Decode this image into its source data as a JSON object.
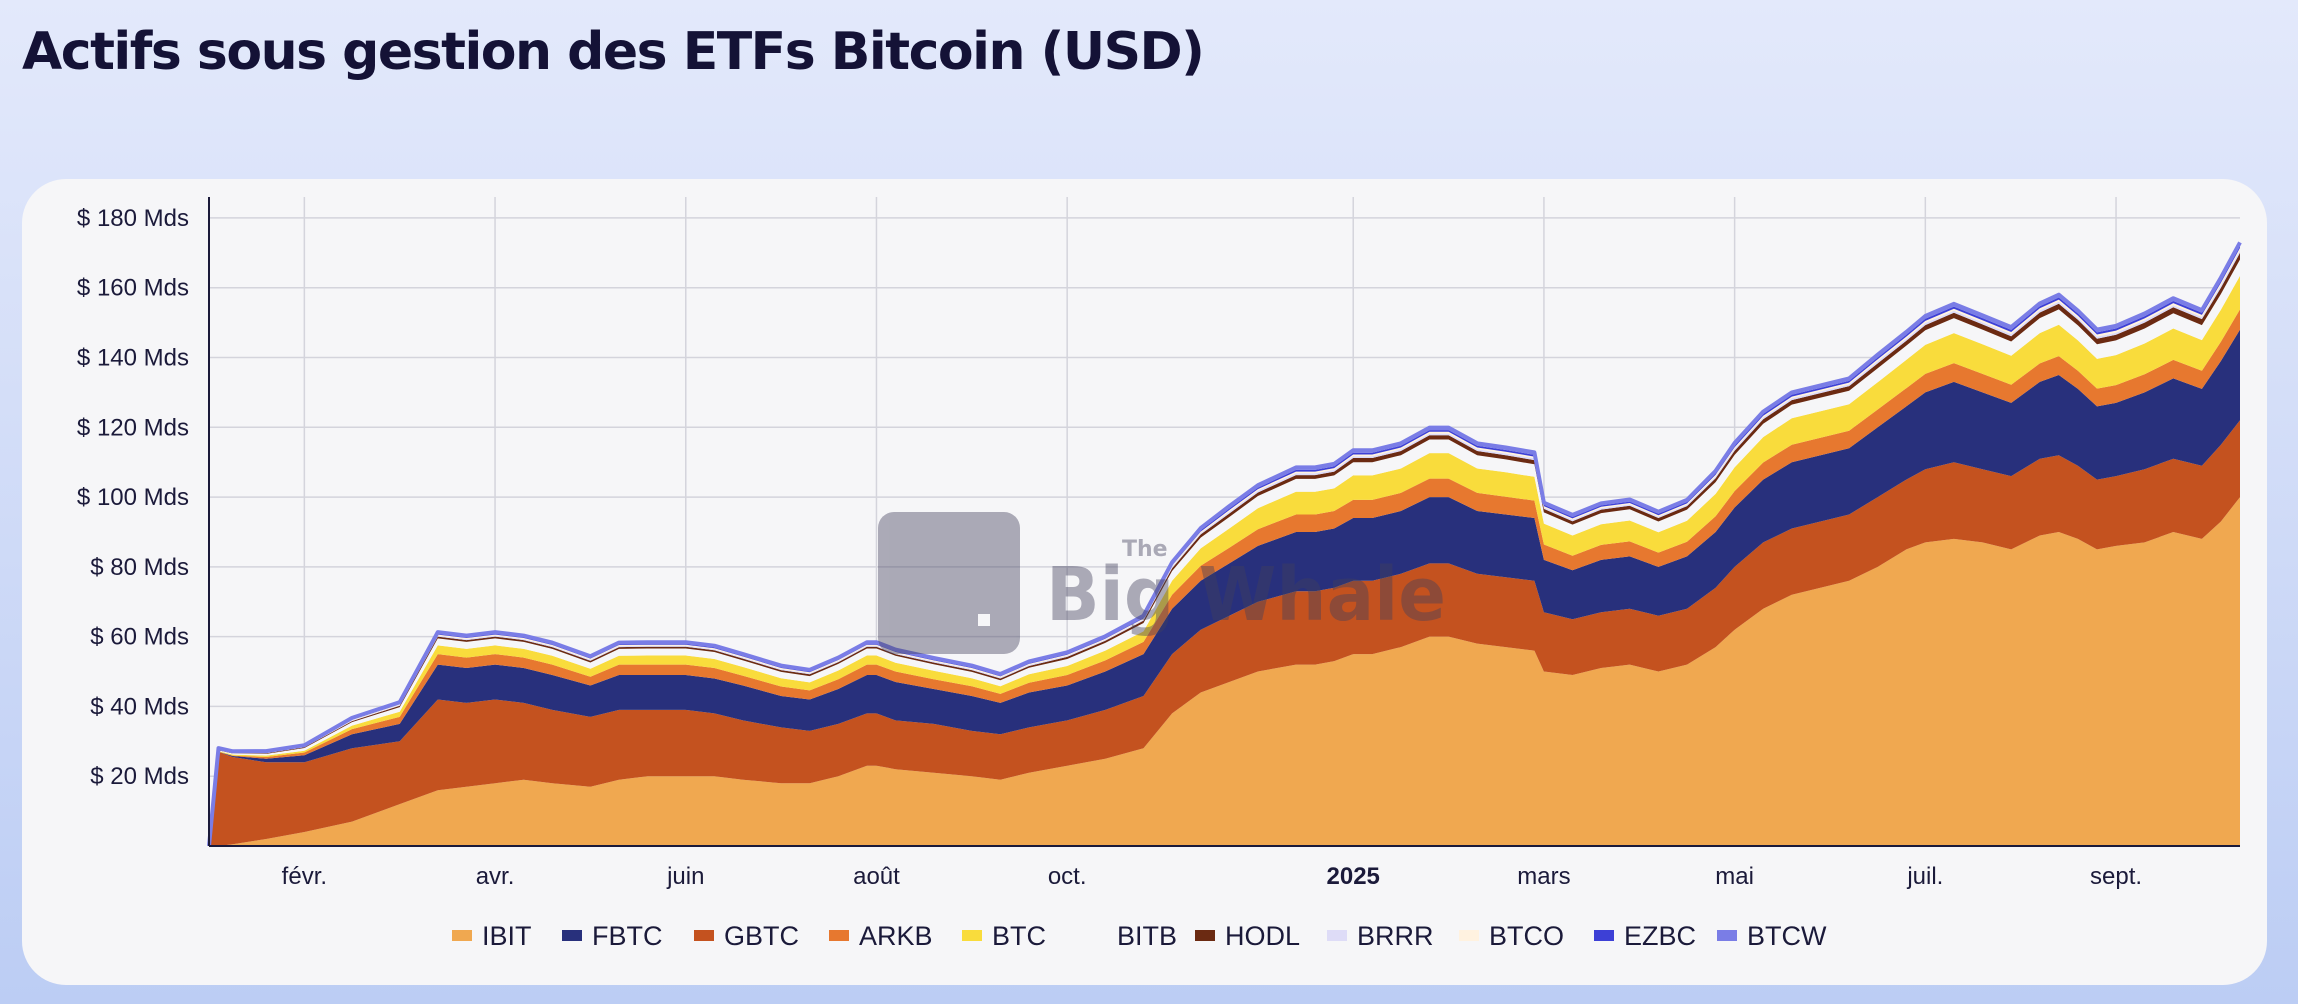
{
  "title": "Actifs sous gestion des ETFs Bitcoin (USD)",
  "watermark": {
    "small": "The",
    "large": "Big Whale"
  },
  "chart_data": {
    "type": "area",
    "stacked": true,
    "title": "Actifs sous gestion des ETFs Bitcoin (USD)",
    "xlabel": "",
    "ylabel": "",
    "unit": "Mds USD",
    "ylim": [
      0,
      186
    ],
    "yticks": [
      20,
      40,
      60,
      80,
      100,
      120,
      140,
      160,
      180
    ],
    "ytick_labels": [
      "$ 20 Mds",
      "$ 40 Mds",
      "$ 60 Mds",
      "$ 80 Mds",
      "$ 100 Mds",
      "$ 120 Mds",
      "$ 140 Mds",
      "$ 160 Mds",
      "$ 180 Mds"
    ],
    "xlim": [
      0,
      21.3
    ],
    "xticks": [
      {
        "x": 1,
        "label": "févr.",
        "bold": false
      },
      {
        "x": 3,
        "label": "avr.",
        "bold": false
      },
      {
        "x": 5,
        "label": "juin",
        "bold": false
      },
      {
        "x": 7,
        "label": "août",
        "bold": false
      },
      {
        "x": 9,
        "label": "oct.",
        "bold": false
      },
      {
        "x": 12,
        "label": "2025",
        "bold": true
      },
      {
        "x": 14,
        "label": "mars",
        "bold": false
      },
      {
        "x": 16,
        "label": "mai",
        "bold": false
      },
      {
        "x": 18,
        "label": "juil.",
        "bold": false
      },
      {
        "x": 20,
        "label": "sept.",
        "bold": false
      }
    ],
    "grid": true,
    "legend_position": "bottom",
    "x": [
      0,
      0.1,
      0.25,
      0.6,
      1.0,
      1.5,
      2.0,
      2.4,
      2.7,
      3.0,
      3.3,
      3.6,
      4.0,
      4.3,
      4.6,
      5.0,
      5.3,
      5.6,
      6.0,
      6.3,
      6.6,
      6.9,
      7.0,
      7.2,
      7.6,
      8.0,
      8.3,
      8.6,
      9.0,
      9.4,
      9.8,
      10.1,
      10.4,
      10.7,
      11.0,
      11.4,
      11.6,
      11.8,
      12.0,
      12.2,
      12.5,
      12.8,
      13.0,
      13.3,
      13.6,
      13.9,
      14.0,
      14.3,
      14.6,
      14.9,
      15.2,
      15.5,
      15.8,
      16.0,
      16.3,
      16.6,
      16.9,
      17.2,
      17.5,
      17.8,
      18.0,
      18.3,
      18.6,
      18.9,
      19.2,
      19.4,
      19.6,
      19.8,
      20.0,
      20.3,
      20.6,
      20.9,
      21.1,
      21.3
    ],
    "series": [
      {
        "name": "IBIT",
        "color": "#f0a850",
        "values": [
          0,
          0,
          0.5,
          2,
          4,
          7,
          12,
          16,
          17,
          18,
          19,
          18,
          17,
          19,
          20,
          20,
          20,
          19,
          18,
          18,
          20,
          23,
          23,
          22,
          21,
          20,
          19,
          21,
          23,
          25,
          28,
          38,
          44,
          47,
          50,
          52,
          52,
          53,
          55,
          55,
          57,
          60,
          60,
          58,
          57,
          56,
          50,
          49,
          51,
          52,
          50,
          52,
          57,
          62,
          68,
          72,
          74,
          76,
          80,
          85,
          87,
          88,
          87,
          85,
          89,
          90,
          88,
          85,
          86,
          87,
          90,
          88,
          93,
          100
        ]
      },
      {
        "name": "GBTC",
        "color": "#c4521f",
        "values": [
          0,
          27,
          25,
          22,
          20,
          21,
          18,
          26,
          24,
          24,
          22,
          21,
          20,
          20,
          19,
          19,
          18,
          17,
          16,
          15,
          15,
          15,
          15,
          14,
          14,
          13,
          13,
          13,
          13,
          14,
          15,
          17,
          18,
          19,
          20,
          21,
          21,
          21,
          21,
          21,
          21,
          21,
          21,
          20,
          20,
          20,
          17,
          16,
          16,
          16,
          16,
          16,
          17,
          18,
          19,
          19,
          19,
          19,
          20,
          20,
          21,
          22,
          21,
          21,
          22,
          22,
          21,
          20,
          20,
          21,
          21,
          21,
          22,
          22
        ]
      },
      {
        "name": "FBTC",
        "color": "#28307c",
        "values": [
          0,
          0,
          0.3,
          1,
          2,
          4,
          5,
          10,
          10,
          10,
          10,
          10,
          9,
          10,
          10,
          10,
          10,
          10,
          9,
          9,
          10,
          11,
          11,
          11,
          10,
          10,
          9,
          10,
          10,
          11,
          12,
          13,
          14,
          15,
          16,
          17,
          17,
          17,
          18,
          18,
          18,
          19,
          19,
          18,
          18,
          18,
          15,
          14,
          15,
          15,
          14,
          15,
          16,
          17,
          18,
          19,
          19,
          19,
          20,
          21,
          22,
          23,
          22,
          21,
          22,
          23,
          22,
          21,
          21,
          22,
          23,
          22,
          24,
          26
        ]
      },
      {
        "name": "ARKB",
        "color": "#e7782f",
        "values": [
          0,
          0,
          0.1,
          0.5,
          0.8,
          1.5,
          2,
          3,
          3,
          3,
          3,
          3,
          2.5,
          3,
          3,
          3,
          3,
          2.8,
          2.7,
          2.6,
          2.8,
          3,
          3,
          3,
          2.8,
          2.8,
          2.6,
          2.8,
          3,
          3.2,
          3.5,
          4,
          4.3,
          4.5,
          4.8,
          5,
          5,
          5,
          5.2,
          5.2,
          5.2,
          5.3,
          5.3,
          5.2,
          5.1,
          5,
          4.4,
          4.2,
          4.3,
          4.3,
          4.1,
          4.2,
          4.5,
          4.7,
          4.9,
          5,
          5,
          5,
          5.1,
          5.2,
          5.3,
          5.4,
          5.3,
          5.2,
          5.3,
          5.4,
          5.2,
          5.1,
          5.1,
          5.2,
          5.3,
          5.2,
          5.5,
          5.8
        ]
      },
      {
        "name": "BTC",
        "color": "#f9dc3c",
        "values": [
          0,
          0.2,
          0.3,
          0.4,
          0.5,
          1,
          1.5,
          2.5,
          2.5,
          2.5,
          2.5,
          2.5,
          2.3,
          2.5,
          2.6,
          2.6,
          2.6,
          2.5,
          2.4,
          2.3,
          2.5,
          2.6,
          2.6,
          2.5,
          2.4,
          2.3,
          2.2,
          2.4,
          2.6,
          2.8,
          3,
          4,
          5,
          5.5,
          6,
          6.5,
          6.5,
          6.5,
          7,
          7,
          7,
          7.3,
          7.3,
          7,
          7,
          6.8,
          6,
          5.8,
          5.9,
          6,
          5.8,
          6,
          6.4,
          6.8,
          7.3,
          7.6,
          7.6,
          7.6,
          7.8,
          8.1,
          8.3,
          8.6,
          8.5,
          8.3,
          8.7,
          9,
          8.7,
          8.5,
          8.6,
          8.8,
          9,
          8.8,
          9.2,
          9.6
        ]
      },
      {
        "name": "BITB",
        "color": "#f6f6f8",
        "values": [
          0,
          0.2,
          0.3,
          0.5,
          0.8,
          1,
          1.3,
          2,
          2,
          2,
          2,
          2,
          1.8,
          2,
          2,
          2,
          2,
          1.9,
          1.8,
          1.8,
          1.9,
          2,
          2,
          2,
          1.9,
          1.8,
          1.7,
          1.9,
          2,
          2.2,
          2.4,
          2.8,
          3.1,
          3.3,
          3.5,
          3.7,
          3.7,
          3.7,
          3.8,
          3.8,
          3.8,
          3.9,
          3.9,
          3.8,
          3.7,
          3.6,
          3.2,
          3.1,
          3.2,
          3.2,
          3.1,
          3.2,
          3.4,
          3.6,
          3.8,
          3.9,
          3.9,
          3.9,
          4,
          4.1,
          4.2,
          4.3,
          4.2,
          4.1,
          4.3,
          4.4,
          4.3,
          4.2,
          4.2,
          4.3,
          4.4,
          4.3,
          4.5,
          4.7
        ]
      },
      {
        "name": "HODL",
        "color": "#6b2a12",
        "values": [
          0,
          0.1,
          0.1,
          0.2,
          0.2,
          0.3,
          0.4,
          0.5,
          0.5,
          0.5,
          0.5,
          0.5,
          0.5,
          0.5,
          0.5,
          0.5,
          0.5,
          0.5,
          0.5,
          0.5,
          0.5,
          0.5,
          0.5,
          0.5,
          0.5,
          0.5,
          0.5,
          0.5,
          0.6,
          0.6,
          0.7,
          0.8,
          0.9,
          1,
          1,
          1.1,
          1.1,
          1.1,
          1.2,
          1.2,
          1.2,
          1.2,
          1.2,
          1.2,
          1.2,
          1.2,
          1,
          1,
          1,
          1,
          1,
          1,
          1.1,
          1.2,
          1.3,
          1.3,
          1.3,
          1.3,
          1.4,
          1.4,
          1.5,
          1.5,
          1.5,
          1.5,
          1.6,
          1.6,
          1.6,
          1.6,
          1.6,
          1.7,
          1.7,
          1.7,
          1.8,
          1.9
        ]
      },
      {
        "name": "BRRR",
        "color": "#dedcf7",
        "values": [
          0,
          0.1,
          0.1,
          0.1,
          0.1,
          0.2,
          0.2,
          0.3,
          0.3,
          0.3,
          0.3,
          0.3,
          0.3,
          0.3,
          0.3,
          0.3,
          0.3,
          0.3,
          0.3,
          0.3,
          0.3,
          0.3,
          0.3,
          0.3,
          0.3,
          0.3,
          0.3,
          0.3,
          0.3,
          0.3,
          0.3,
          0.4,
          0.4,
          0.5,
          0.5,
          0.5,
          0.5,
          0.5,
          0.5,
          0.5,
          0.5,
          0.5,
          0.5,
          0.5,
          0.5,
          0.5,
          0.4,
          0.4,
          0.4,
          0.4,
          0.4,
          0.4,
          0.5,
          0.5,
          0.5,
          0.5,
          0.5,
          0.5,
          0.6,
          0.6,
          0.6,
          0.6,
          0.6,
          0.6,
          0.6,
          0.6,
          0.6,
          0.6,
          0.6,
          0.6,
          0.6,
          0.6,
          0.7,
          0.7
        ]
      },
      {
        "name": "BTCO",
        "color": "#fff2e0",
        "values": [
          0,
          0.1,
          0.1,
          0.1,
          0.1,
          0.2,
          0.2,
          0.3,
          0.3,
          0.3,
          0.3,
          0.3,
          0.3,
          0.3,
          0.3,
          0.3,
          0.3,
          0.3,
          0.3,
          0.3,
          0.3,
          0.3,
          0.3,
          0.3,
          0.3,
          0.3,
          0.3,
          0.3,
          0.3,
          0.3,
          0.3,
          0.4,
          0.4,
          0.5,
          0.5,
          0.5,
          0.5,
          0.5,
          0.5,
          0.5,
          0.5,
          0.5,
          0.5,
          0.5,
          0.5,
          0.5,
          0.4,
          0.4,
          0.4,
          0.4,
          0.4,
          0.4,
          0.5,
          0.5,
          0.5,
          0.5,
          0.5,
          0.5,
          0.6,
          0.6,
          0.6,
          0.6,
          0.6,
          0.6,
          0.6,
          0.6,
          0.6,
          0.6,
          0.6,
          0.6,
          0.6,
          0.6,
          0.7,
          0.7
        ]
      },
      {
        "name": "EZBC",
        "color": "#3d40d6",
        "values": [
          0,
          0.05,
          0.05,
          0.1,
          0.1,
          0.1,
          0.2,
          0.2,
          0.2,
          0.2,
          0.2,
          0.2,
          0.2,
          0.2,
          0.2,
          0.2,
          0.2,
          0.2,
          0.2,
          0.2,
          0.2,
          0.2,
          0.2,
          0.2,
          0.2,
          0.2,
          0.2,
          0.2,
          0.2,
          0.2,
          0.3,
          0.3,
          0.4,
          0.4,
          0.4,
          0.5,
          0.5,
          0.5,
          0.5,
          0.5,
          0.5,
          0.5,
          0.5,
          0.5,
          0.5,
          0.5,
          0.4,
          0.4,
          0.4,
          0.4,
          0.4,
          0.4,
          0.4,
          0.5,
          0.5,
          0.5,
          0.5,
          0.5,
          0.5,
          0.5,
          0.6,
          0.6,
          0.6,
          0.6,
          0.6,
          0.6,
          0.6,
          0.6,
          0.6,
          0.6,
          0.6,
          0.6,
          0.6,
          0.7
        ]
      },
      {
        "name": "BTCW",
        "color": "#7a7de6",
        "values": [
          0,
          0.3,
          0.3,
          0.3,
          0.3,
          0.4,
          0.4,
          0.5,
          0.5,
          0.5,
          0.5,
          0.5,
          0.5,
          0.5,
          0.5,
          0.5,
          0.5,
          0.5,
          0.5,
          0.5,
          0.5,
          0.5,
          0.5,
          0.5,
          0.5,
          0.5,
          0.5,
          0.5,
          0.5,
          0.5,
          0.5,
          0.6,
          0.6,
          0.7,
          0.7,
          0.7,
          0.7,
          0.7,
          0.7,
          0.7,
          0.7,
          0.7,
          0.7,
          0.7,
          0.7,
          0.7,
          0.6,
          0.6,
          0.6,
          0.6,
          0.6,
          0.6,
          0.7,
          0.7,
          0.7,
          0.7,
          0.7,
          0.7,
          0.8,
          0.8,
          0.8,
          0.8,
          0.8,
          0.8,
          0.8,
          0.8,
          0.8,
          0.8,
          0.8,
          0.8,
          0.8,
          0.8,
          0.9,
          0.9
        ]
      }
    ],
    "legend": [
      {
        "name": "IBIT",
        "color": "#f0a850"
      },
      {
        "name": "FBTC",
        "color": "#28307c"
      },
      {
        "name": "GBTC",
        "color": "#c4521f"
      },
      {
        "name": "ARKB",
        "color": "#e7782f"
      },
      {
        "name": "BTC",
        "color": "#f9dc3c"
      },
      {
        "name": "BITB",
        "color": "#f6f6f8"
      },
      {
        "name": "HODL",
        "color": "#6b2a12"
      },
      {
        "name": "BRRR",
        "color": "#dedcf7"
      },
      {
        "name": "BTCO",
        "color": "#fff2e0"
      },
      {
        "name": "EZBC",
        "color": "#3d40d6"
      },
      {
        "name": "BTCW",
        "color": "#7a7de6"
      }
    ]
  }
}
